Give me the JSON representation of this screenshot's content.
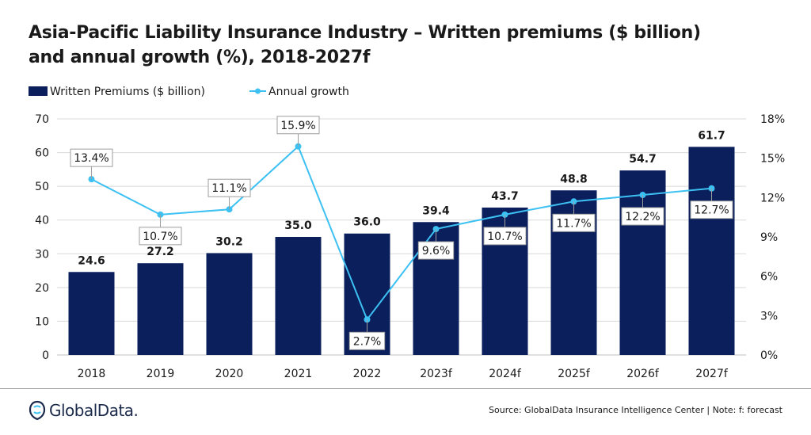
{
  "title": {
    "line1": "Asia-Pacific Liability Insurance Industry – Written premiums ($ billion)",
    "line2": "and annual growth (%), 2018-2027f"
  },
  "legend": {
    "bar_label": "Written Premiums ($ billion)",
    "line_label": "Annual growth"
  },
  "colors": {
    "bar": "#0a1f5c",
    "line": "#3cc1f2",
    "grid": "#d9d9d9"
  },
  "chart_data": {
    "type": "bar",
    "categories": [
      "2018",
      "2019",
      "2020",
      "2021",
      "2022",
      "2023f",
      "2024f",
      "2025f",
      "2026f",
      "2027f"
    ],
    "series": [
      {
        "name": "Written Premiums ($ billion)",
        "type": "bar",
        "axis": "left",
        "values": [
          24.6,
          27.2,
          30.2,
          35.0,
          36.0,
          39.4,
          43.7,
          48.8,
          54.7,
          61.7
        ],
        "labels": [
          "24.6",
          "27.2",
          "30.2",
          "35.0",
          "36.0",
          "39.4",
          "43.7",
          "48.8",
          "54.7",
          "61.7"
        ]
      },
      {
        "name": "Annual growth",
        "type": "line",
        "axis": "right",
        "values": [
          13.4,
          10.7,
          11.1,
          15.9,
          2.7,
          9.6,
          10.7,
          11.7,
          12.2,
          12.7
        ],
        "labels": [
          "13.4%",
          "10.7%",
          "11.1%",
          "15.9%",
          "2.7%",
          "9.6%",
          "10.7%",
          "11.7%",
          "12.2%",
          "12.7%"
        ]
      }
    ],
    "left_axis": {
      "ylim": [
        0,
        70
      ],
      "ticks": [
        "0",
        "10",
        "20",
        "30",
        "40",
        "50",
        "60",
        "70"
      ]
    },
    "right_axis": {
      "ylim": [
        0,
        18
      ],
      "ticks": [
        "0%",
        "3%",
        "6%",
        "9%",
        "12%",
        "15%",
        "18%"
      ]
    },
    "grid": true,
    "legend_position": "top-left"
  },
  "footer": {
    "logo_text": "GlobalData.",
    "source": "Source: GlobalData Insurance Intelligence Center | Note: f: forecast"
  }
}
